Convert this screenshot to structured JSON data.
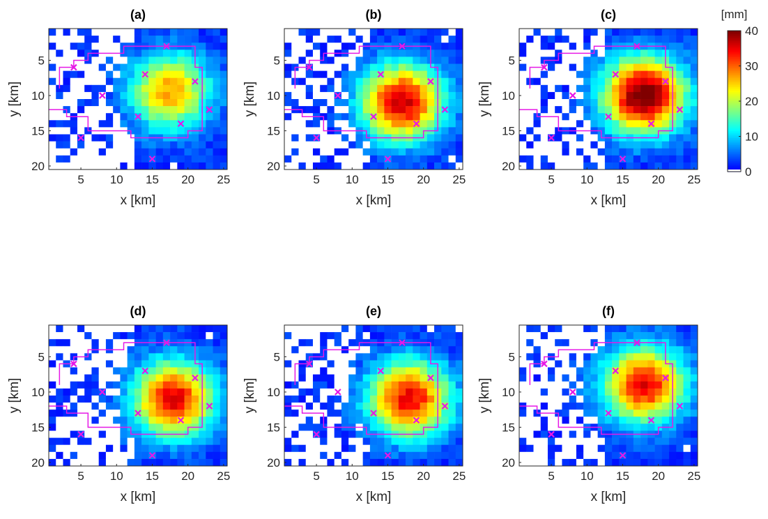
{
  "colorbar": {
    "unit_label": "[mm]",
    "min": 0,
    "max": 40,
    "ticks": [
      0,
      10,
      20,
      30,
      40
    ],
    "colormap": "jet",
    "zero_color": "#ffffff"
  },
  "chart_data": [
    {
      "type": "heatmap",
      "title": "(a)",
      "xlabel": "x [km]",
      "ylabel": "y [km]",
      "xticks": [
        5,
        10,
        15,
        20,
        25
      ],
      "yticks": [
        5,
        10,
        15,
        20
      ],
      "xlim": [
        0.5,
        25.5
      ],
      "ylim": [
        0.5,
        20.5
      ],
      "y_reversed": true,
      "grid_cols": 25,
      "grid_rows": 20,
      "peak": {
        "x": 17.5,
        "y": 9.5,
        "value": 25
      },
      "marker_color": "#e619e6"
    },
    {
      "type": "heatmap",
      "title": "(b)",
      "xlabel": "x [km]",
      "ylabel": "y [km]",
      "xticks": [
        5,
        10,
        15,
        20,
        25
      ],
      "yticks": [
        5,
        10,
        15,
        20
      ],
      "xlim": [
        0.5,
        25.5
      ],
      "ylim": [
        0.5,
        20.5
      ],
      "y_reversed": true,
      "grid_cols": 25,
      "grid_rows": 20,
      "peak": {
        "x": 17,
        "y": 11,
        "value": 35
      },
      "marker_color": "#e619e6"
    },
    {
      "type": "heatmap",
      "title": "(c)",
      "xlabel": "x [km]",
      "ylabel": "y [km]",
      "xticks": [
        5,
        10,
        15,
        20,
        25
      ],
      "yticks": [
        5,
        10,
        15,
        20
      ],
      "xlim": [
        0.5,
        25.5
      ],
      "ylim": [
        0.5,
        20.5
      ],
      "y_reversed": true,
      "grid_cols": 25,
      "grid_rows": 20,
      "peak": {
        "x": 18,
        "y": 10,
        "value": 40
      },
      "marker_color": "#e619e6"
    },
    {
      "type": "heatmap",
      "title": "(d)",
      "xlabel": "x [km]",
      "ylabel": "y [km]",
      "xticks": [
        5,
        10,
        15,
        20,
        25
      ],
      "yticks": [
        5,
        10,
        15,
        20
      ],
      "xlim": [
        0.5,
        25.5
      ],
      "ylim": [
        0.5,
        20.5
      ],
      "y_reversed": true,
      "grid_cols": 25,
      "grid_rows": 20,
      "peak": {
        "x": 18,
        "y": 11,
        "value": 33
      },
      "marker_color": "#e619e6"
    },
    {
      "type": "heatmap",
      "title": "(e)",
      "xlabel": "x [km]",
      "ylabel": "y [km]",
      "xticks": [
        5,
        10,
        15,
        20,
        25
      ],
      "yticks": [
        5,
        10,
        15,
        20
      ],
      "xlim": [
        0.5,
        25.5
      ],
      "ylim": [
        0.5,
        20.5
      ],
      "y_reversed": true,
      "grid_cols": 25,
      "grid_rows": 20,
      "peak": {
        "x": 18,
        "y": 11,
        "value": 33
      },
      "marker_color": "#e619e6"
    },
    {
      "type": "heatmap",
      "title": "(f)",
      "xlabel": "x [km]",
      "ylabel": "y [km]",
      "xticks": [
        5,
        10,
        15,
        20,
        25
      ],
      "yticks": [
        5,
        10,
        15,
        20
      ],
      "xlim": [
        0.5,
        25.5
      ],
      "ylim": [
        0.5,
        20.5
      ],
      "y_reversed": true,
      "grid_cols": 25,
      "grid_rows": 20,
      "peak": {
        "x": 18,
        "y": 9,
        "value": 33
      },
      "marker_color": "#e619e6"
    }
  ],
  "stations": [
    {
      "x": 17,
      "y": 3
    },
    {
      "x": 4,
      "y": 6
    },
    {
      "x": 14,
      "y": 7
    },
    {
      "x": 21,
      "y": 8
    },
    {
      "x": 8,
      "y": 10
    },
    {
      "x": 23,
      "y": 12
    },
    {
      "x": 13,
      "y": 13
    },
    {
      "x": 19,
      "y": 14
    },
    {
      "x": 5,
      "y": 16
    },
    {
      "x": 15,
      "y": 19
    }
  ],
  "boundary": [
    [
      2,
      9
    ],
    [
      2,
      6
    ],
    [
      4,
      6
    ],
    [
      4,
      5
    ],
    [
      6,
      5
    ],
    [
      6,
      4
    ],
    [
      11,
      4
    ],
    [
      11,
      3
    ],
    [
      21,
      3
    ],
    [
      21,
      6
    ],
    [
      22,
      6
    ],
    [
      22,
      15
    ],
    [
      20,
      15
    ],
    [
      20,
      16
    ],
    [
      12,
      16
    ],
    [
      12,
      15
    ],
    [
      6,
      15
    ],
    [
      6,
      13
    ],
    [
      3,
      13
    ],
    [
      3,
      12
    ],
    [
      0.5,
      12
    ]
  ]
}
